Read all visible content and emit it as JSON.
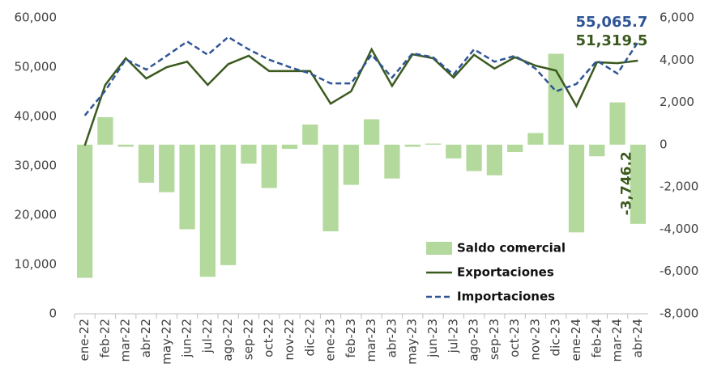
{
  "chart_data": {
    "type": "combo",
    "categories": [
      "ene-22",
      "feb-22",
      "mar-22",
      "abr-22",
      "may-22",
      "jun-22",
      "jul-22",
      "ago-22",
      "sep-22",
      "oct-22",
      "nov-22",
      "dic-22",
      "ene-23",
      "feb-23",
      "mar-23",
      "abr-23",
      "may-23",
      "jun-23",
      "jul-23",
      "ago-23",
      "sep-23",
      "oct-23",
      "nov-23",
      "dic-23",
      "ene-24",
      "feb-24",
      "mar-24",
      "abr-24"
    ],
    "series": [
      {
        "name": "Saldo comercial",
        "type": "bar",
        "axis": "y2",
        "color": "#b3d99c",
        "values": [
          -6300,
          1300,
          -100,
          -1800,
          -2250,
          -4000,
          -6250,
          -5700,
          -900,
          -2050,
          -200,
          950,
          -4100,
          -1900,
          1200,
          -1600,
          -100,
          50,
          -650,
          -1250,
          -1450,
          -350,
          550,
          4300,
          -4150,
          -550,
          2000,
          -3746.2
        ],
        "value_labels": [
          null,
          null,
          null,
          null,
          null,
          null,
          null,
          null,
          null,
          null,
          null,
          null,
          null,
          null,
          null,
          null,
          null,
          null,
          null,
          null,
          null,
          null,
          null,
          null,
          null,
          null,
          null,
          "-3,746.2"
        ]
      },
      {
        "name": "Exportaciones",
        "type": "line",
        "color": "#3b5a1e",
        "values": [
          34100,
          46400,
          51800,
          47700,
          50000,
          51100,
          46400,
          50600,
          52300,
          49200,
          49200,
          49200,
          42600,
          45100,
          53600,
          46200,
          52600,
          51800,
          47900,
          52500,
          49700,
          52000,
          50300,
          49300,
          42100,
          51000,
          50800,
          51319.5
        ],
        "value_labels": [
          null,
          null,
          null,
          null,
          null,
          null,
          null,
          null,
          null,
          null,
          null,
          null,
          null,
          null,
          null,
          null,
          null,
          null,
          null,
          null,
          null,
          null,
          null,
          null,
          null,
          null,
          null,
          "51,319.5"
        ]
      },
      {
        "name": "Importaciones",
        "type": "line",
        "dashed": true,
        "color": "#2f5597",
        "values": [
          40200,
          45200,
          51600,
          49500,
          52300,
          55200,
          52500,
          56100,
          53600,
          51500,
          50000,
          48700,
          46700,
          46700,
          52500,
          47900,
          52800,
          52000,
          48500,
          53600,
          51100,
          52300,
          49700,
          45100,
          46600,
          51300,
          48700,
          55065.7
        ],
        "value_labels": [
          null,
          null,
          null,
          null,
          null,
          null,
          null,
          null,
          null,
          null,
          null,
          null,
          null,
          null,
          null,
          null,
          null,
          null,
          null,
          null,
          null,
          null,
          null,
          null,
          null,
          null,
          null,
          "55,065.7"
        ]
      }
    ],
    "ylim": [
      0,
      60000
    ],
    "yticks": [
      0,
      {
        "value": 10000,
        "label": "10,000"
      },
      {
        "value": 20000,
        "label": "20,000"
      },
      {
        "value": 30000,
        "label": "30,000"
      },
      {
        "value": 40000,
        "label": "40,000"
      },
      {
        "value": 50000,
        "label": "50,000"
      },
      {
        "value": 60000,
        "label": "60,000"
      }
    ],
    "y2lim": [
      -8000,
      6000
    ],
    "y2ticks": [
      {
        "value": -8000,
        "label": "-8,000"
      },
      {
        "value": -6000,
        "label": "-6,000"
      },
      {
        "value": -4000,
        "label": "-4,000"
      },
      {
        "value": -2000,
        "label": "-2,000"
      },
      0,
      {
        "value": 2000,
        "label": "2,000"
      },
      {
        "value": 4000,
        "label": "4,000"
      },
      {
        "value": 6000,
        "label": "6,000"
      }
    ],
    "legend": "lower right",
    "grid": false
  }
}
